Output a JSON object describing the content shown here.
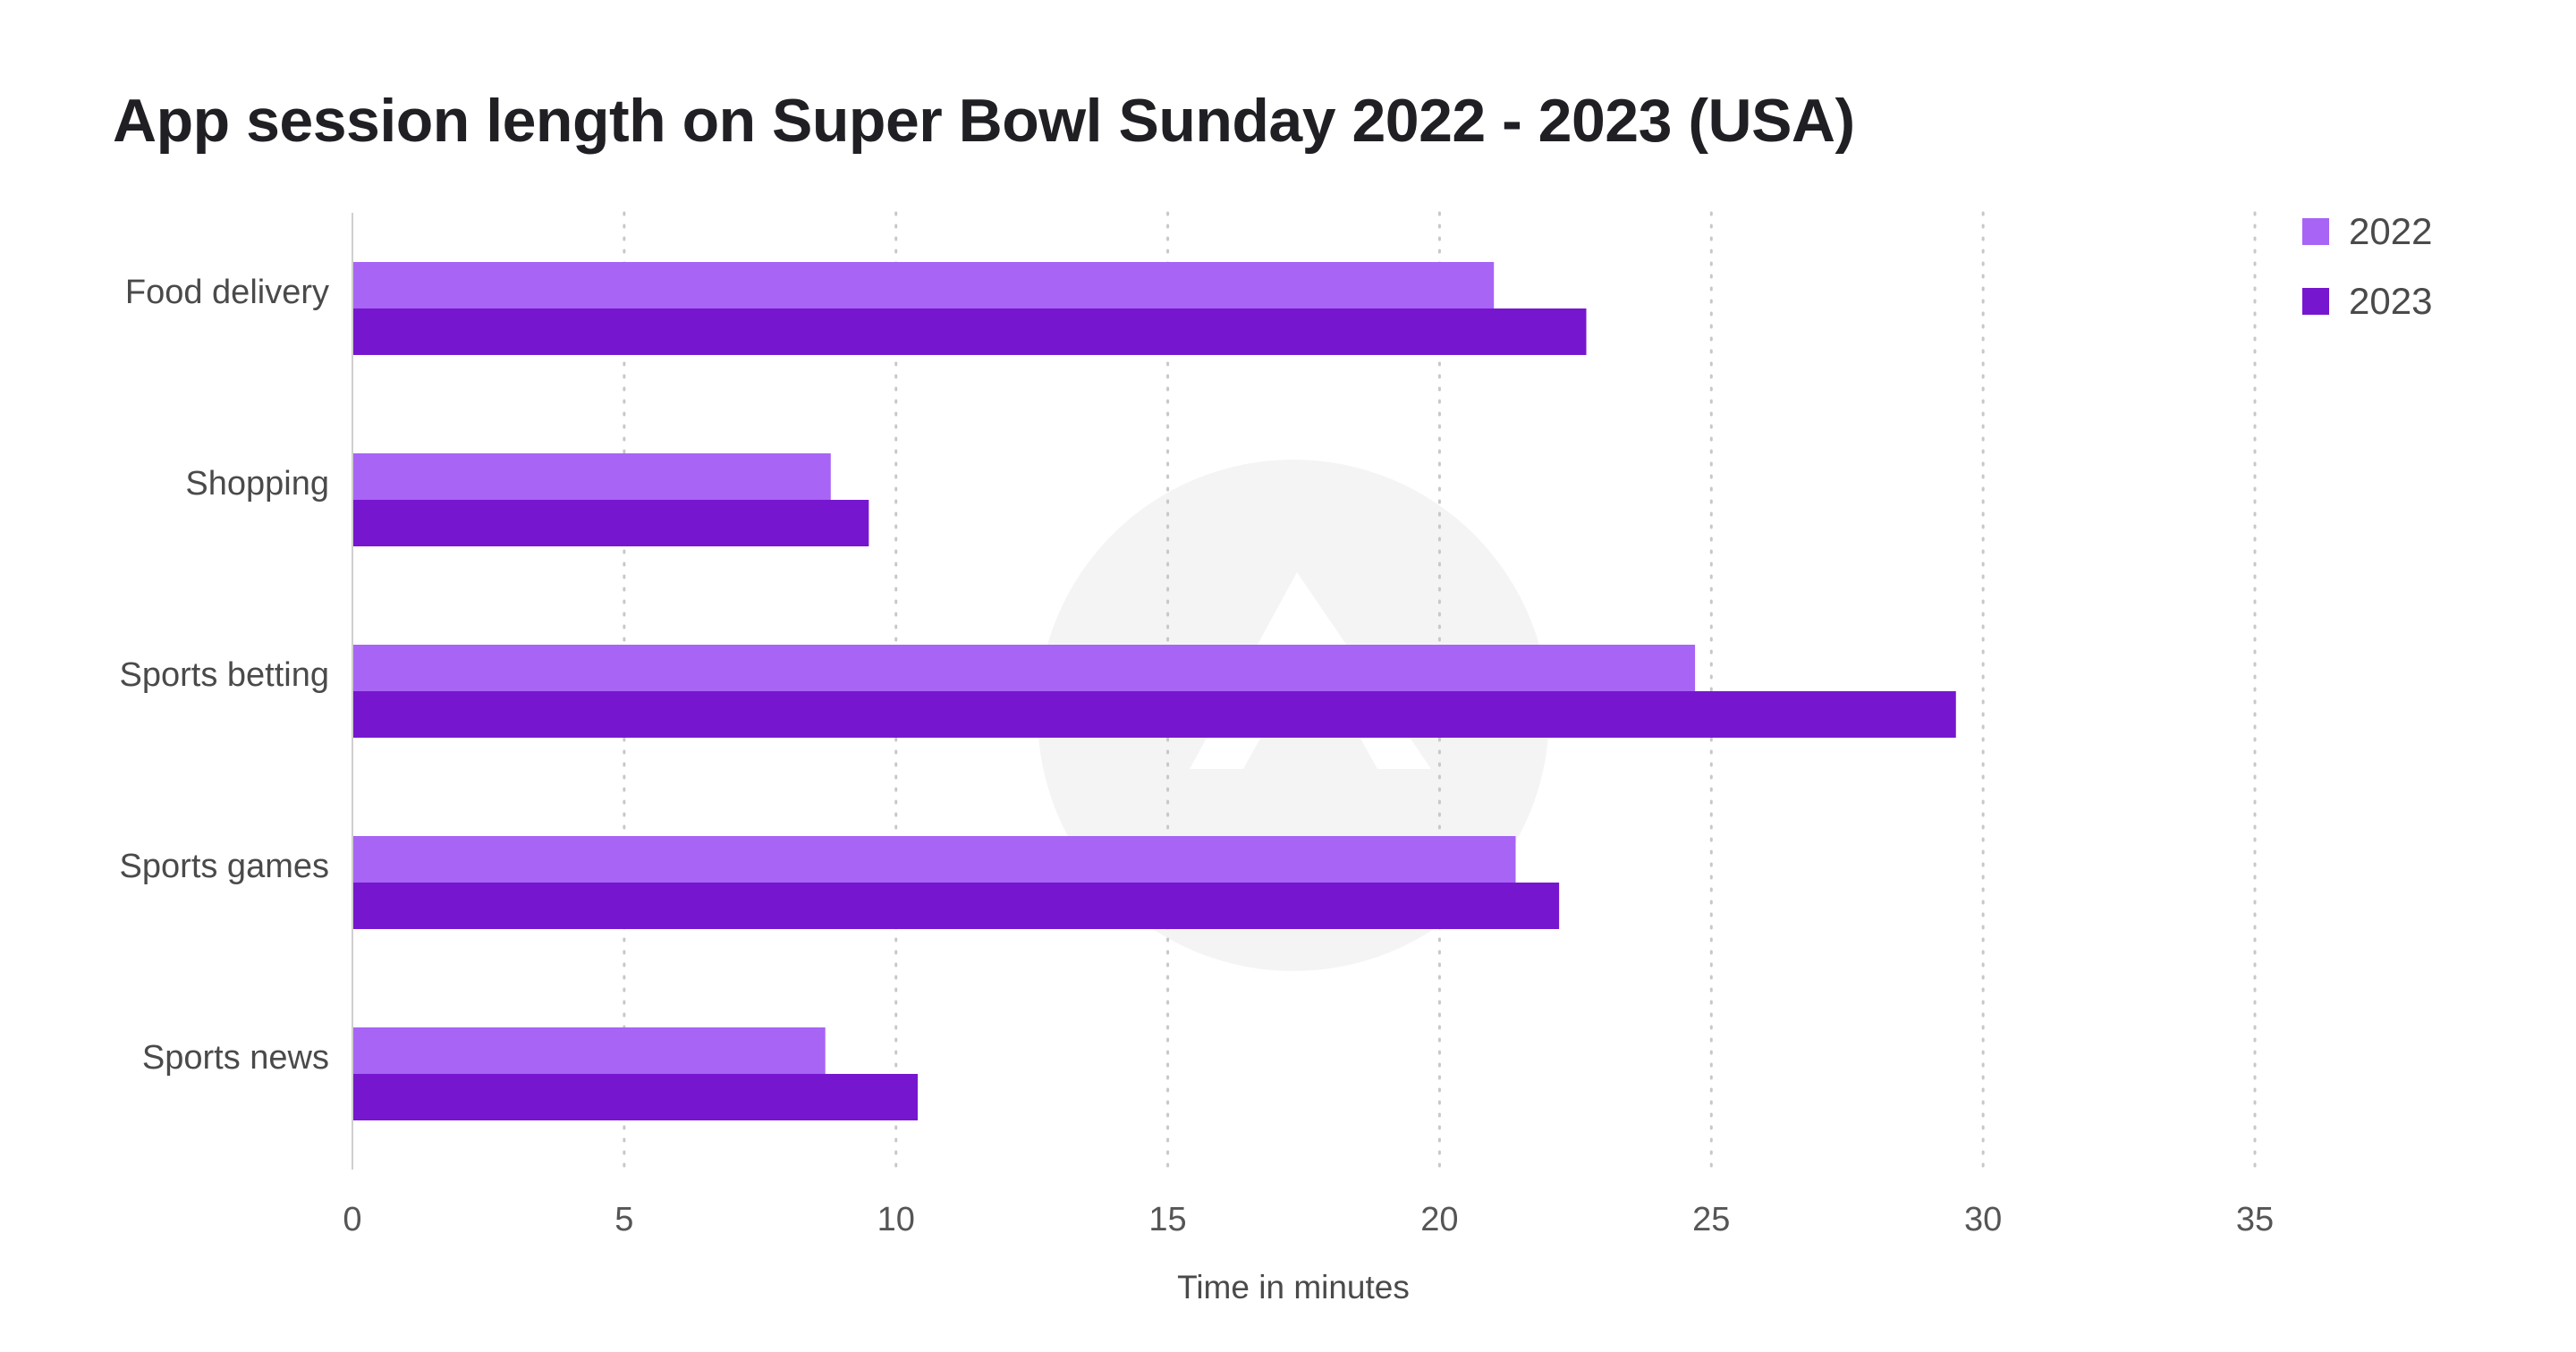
{
  "title": "App session length on Super Bowl Sunday 2022 - 2023 (USA)",
  "chart_data": {
    "type": "bar",
    "orientation": "horizontal",
    "title": "App session length on Super Bowl Sunday 2022 - 2023 (USA)",
    "xlabel": "Time in minutes",
    "ylabel": "",
    "categories": [
      "Food delivery",
      "Shopping",
      "Sports betting",
      "Sports games",
      "Sports news"
    ],
    "series": [
      {
        "name": "2022",
        "color": "#a764f5",
        "values": [
          21.0,
          8.8,
          24.7,
          21.4,
          8.7
        ]
      },
      {
        "name": "2023",
        "color": "#7716cf",
        "values": [
          22.7,
          9.5,
          29.5,
          22.2,
          10.4
        ]
      }
    ],
    "xlim": [
      0,
      35
    ],
    "xticks": [
      "0",
      "5",
      "10",
      "15",
      "20",
      "25",
      "30",
      "35"
    ],
    "grid": "vertical dotted",
    "legend_position": "top-right"
  },
  "legend": [
    {
      "label": "2022",
      "color": "#a764f5"
    },
    {
      "label": "2023",
      "color": "#7716cf"
    }
  ]
}
